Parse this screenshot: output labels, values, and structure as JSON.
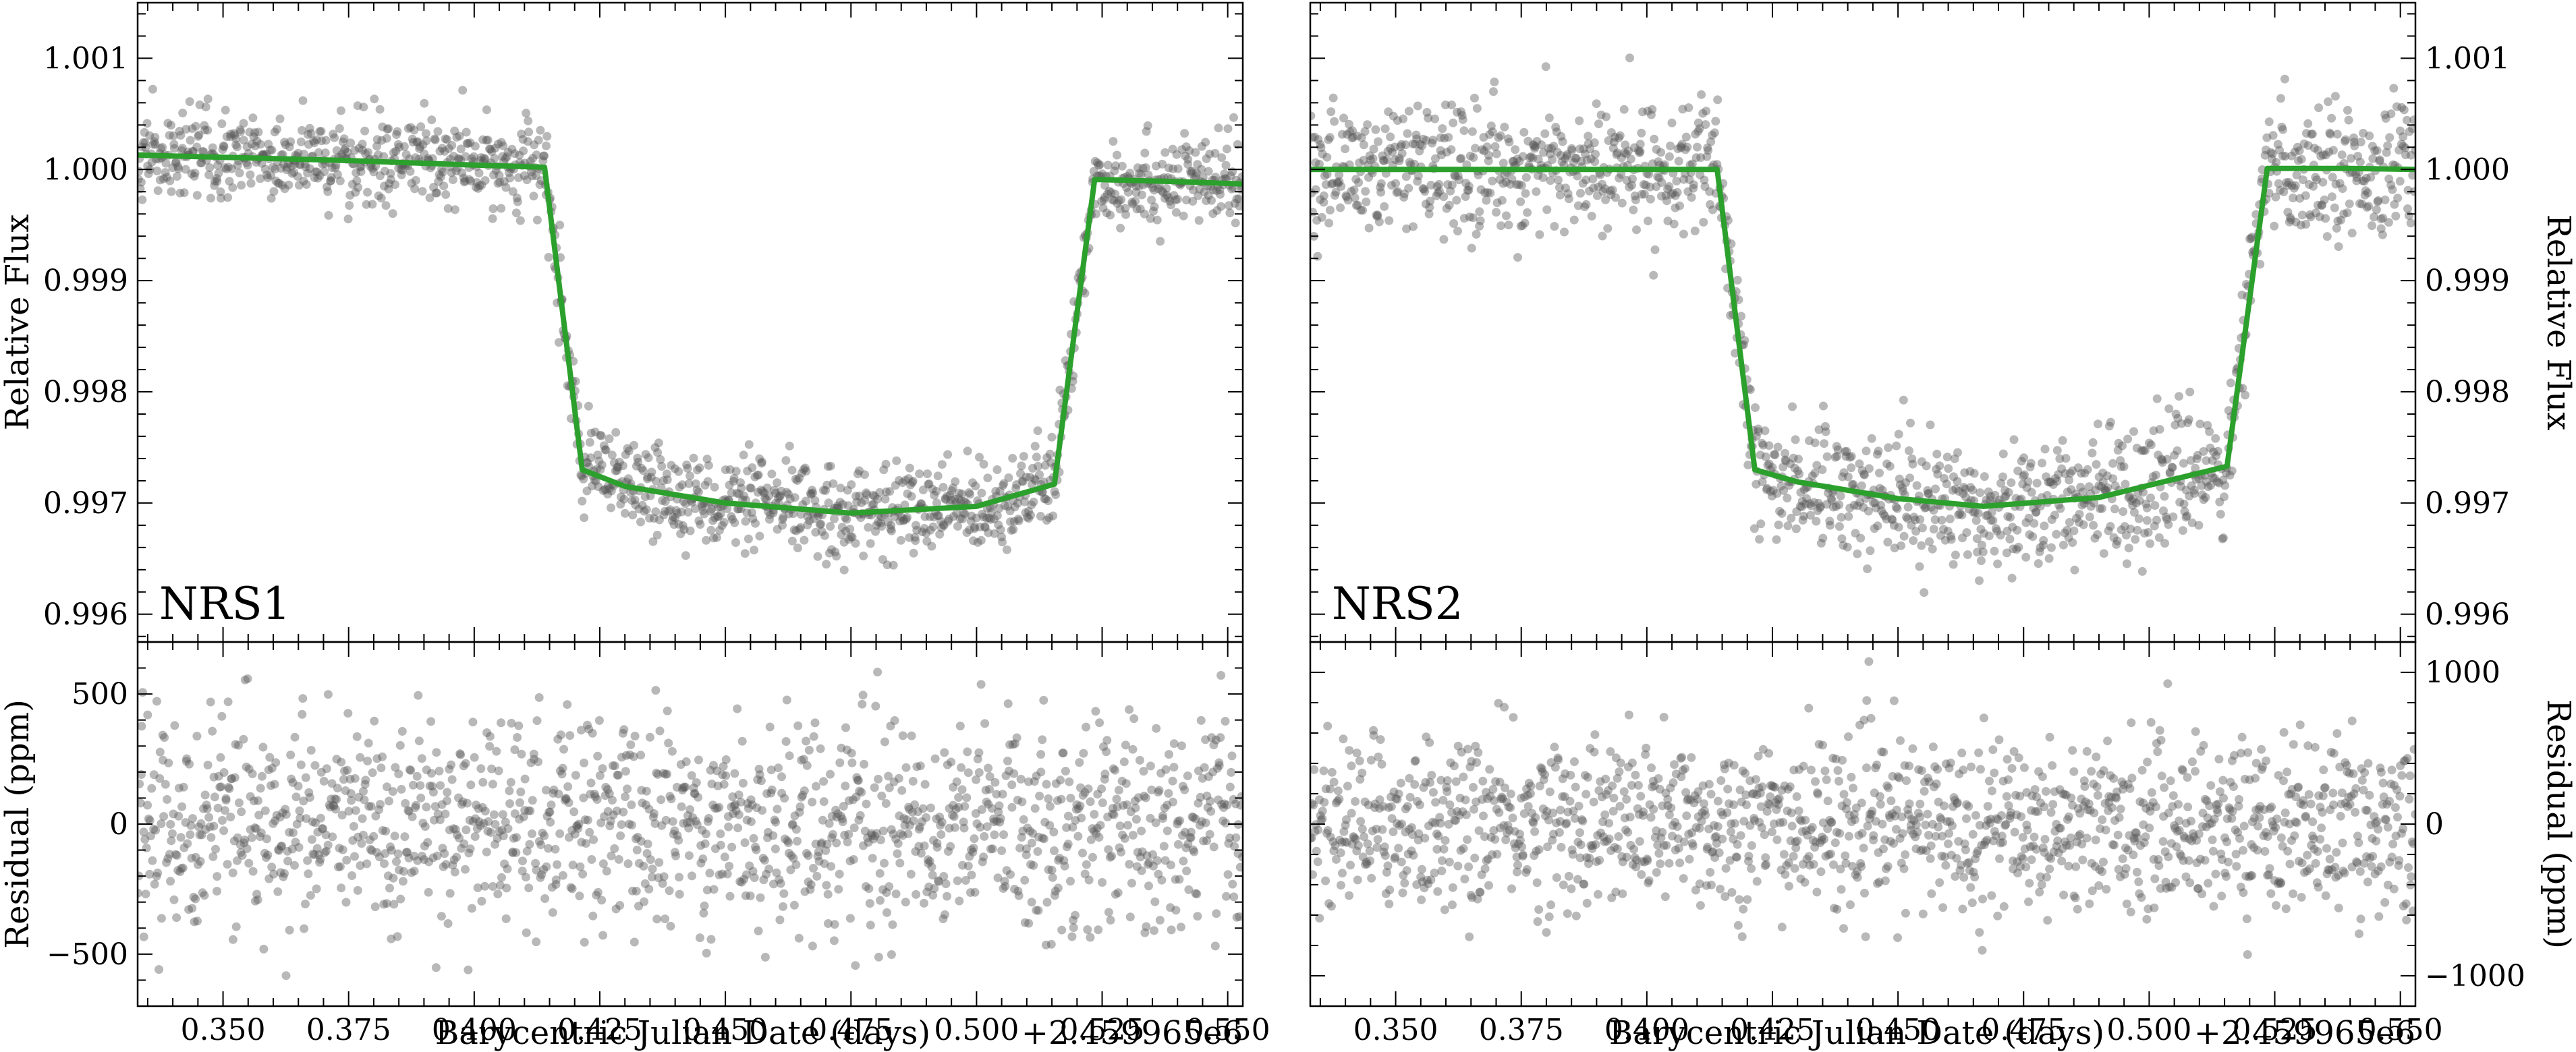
{
  "chart_data": [
    {
      "type": "scatter",
      "panel": "NRS1 light curve",
      "label": "NRS1",
      "xlabel": "",
      "ylabel": "Relative Flux",
      "xlim": [
        0.333,
        0.553
      ],
      "ylim": [
        0.99575,
        1.0015
      ],
      "yticks": [
        0.996,
        0.997,
        0.998,
        0.999,
        1.0,
        1.001
      ],
      "ytick_labels": [
        "0.996",
        "0.997",
        "0.998",
        "0.999",
        "1.000",
        "1.001"
      ],
      "ytick_side": "left",
      "model": {
        "color": "#2ca02c",
        "x": [
          0.333,
          0.35,
          0.375,
          0.4,
          0.414,
          0.4215,
          0.43,
          0.45,
          0.475,
          0.5,
          0.5155,
          0.5235,
          0.54,
          0.553
        ],
        "y": [
          1.00013,
          1.00011,
          1.00008,
          1.00004,
          1.00002,
          0.9973,
          0.99715,
          0.997,
          0.99691,
          0.99697,
          0.99717,
          0.99991,
          0.99989,
          0.99987
        ]
      },
      "points_color": "#555555",
      "noise_sigma": 0.0002
    },
    {
      "type": "scatter",
      "panel": "NRS2 light curve",
      "label": "NRS2",
      "xlabel": "",
      "ylabel": "Relative Flux",
      "xlim": [
        0.333,
        0.553
      ],
      "ylim": [
        0.99575,
        1.0015
      ],
      "yticks": [
        0.996,
        0.997,
        0.998,
        0.999,
        1.0,
        1.001
      ],
      "ytick_labels": [
        "0.996",
        "0.997",
        "0.998",
        "0.999",
        "1.000",
        "1.001"
      ],
      "ytick_side": "right",
      "model": {
        "color": "#2ca02c",
        "x": [
          0.333,
          0.35,
          0.375,
          0.4,
          0.414,
          0.4215,
          0.43,
          0.45,
          0.467,
          0.49,
          0.5155,
          0.5235,
          0.54,
          0.553
        ],
        "y": [
          1.0,
          1.0,
          1.0,
          1.0,
          1.0,
          0.9973,
          0.99719,
          0.99704,
          0.99697,
          0.99705,
          0.99733,
          1.00001,
          1.00001,
          1.0
        ]
      },
      "points_color": "#555555",
      "noise_sigma": 0.00028
    },
    {
      "type": "scatter",
      "panel": "NRS1 residuals",
      "xlabel": "Barycentric Julian Date (days)",
      "x_offset_label": "+2.459965e6",
      "ylabel": "Residual (ppm)",
      "xlim": [
        0.333,
        0.553
      ],
      "ylim": [
        -700,
        700
      ],
      "yticks": [
        -500,
        0,
        500
      ],
      "ytick_labels": [
        "−500",
        "0",
        "500"
      ],
      "ytick_side": "left",
      "xticks": [
        0.35,
        0.375,
        0.4,
        0.425,
        0.45,
        0.475,
        0.5,
        0.525,
        0.55
      ],
      "xtick_labels": [
        "0.350",
        "0.375",
        "0.400",
        "0.425",
        "0.450",
        "0.475",
        "0.500",
        "0.525",
        "0.550"
      ],
      "points_color": "#555555",
      "noise_sigma": 200
    },
    {
      "type": "scatter",
      "panel": "NRS2 residuals",
      "xlabel": "Barycentric Julian Date (days)",
      "x_offset_label": "+2.459965e6",
      "ylabel": "Residual (ppm)",
      "xlim": [
        0.333,
        0.553
      ],
      "ylim": [
        -1200,
        1200
      ],
      "yticks": [
        -1000,
        0,
        1000
      ],
      "ytick_labels": [
        "−1000",
        "0",
        "1000"
      ],
      "ytick_side": "right",
      "xticks": [
        0.35,
        0.375,
        0.4,
        0.425,
        0.45,
        0.475,
        0.5,
        0.525,
        0.55
      ],
      "xtick_labels": [
        "0.350",
        "0.375",
        "0.400",
        "0.425",
        "0.450",
        "0.475",
        "0.500",
        "0.525",
        "0.550"
      ],
      "points_color": "#555555",
      "noise_sigma": 280
    }
  ]
}
